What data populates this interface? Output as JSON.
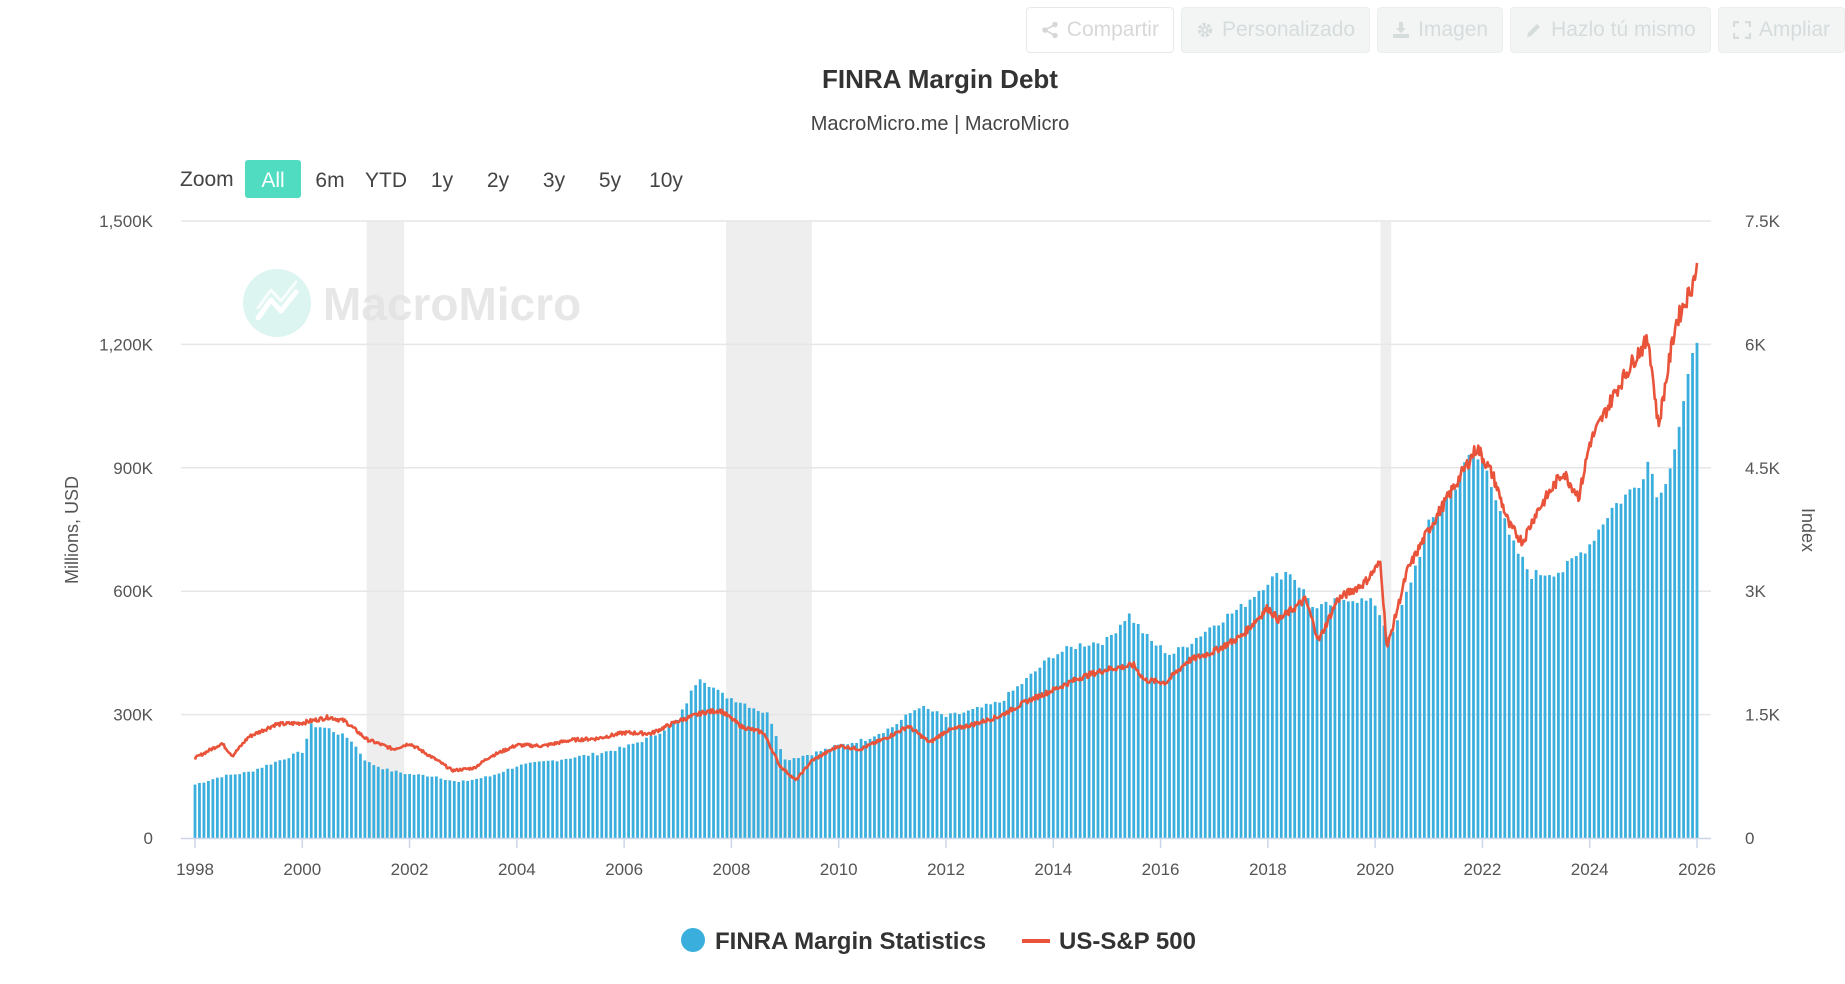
{
  "toolbar": {
    "share_label": "Compartir",
    "custom_label": "Personalizado",
    "image_label": "Imagen",
    "diy_label": "Hazlo tú mismo",
    "expand_label": "Ampliar"
  },
  "zoom": {
    "label": "Zoom",
    "options": [
      "All",
      "6m",
      "YTD",
      "1y",
      "2y",
      "3y",
      "5y",
      "10y"
    ],
    "selected": "All"
  },
  "watermark": "MacroMicro",
  "colors": {
    "bars": "#3aaedc",
    "line": "#e8533a",
    "recession": "#eeeeee",
    "zoom_active": "#4fdcc0",
    "grid": "#e6e6e6"
  },
  "chart_data": {
    "type": "bar+line",
    "title": "FINRA Margin Debt",
    "subtitle": "MacroMicro.me | MacroMicro",
    "ylabel_left": "Millions, USD",
    "ylabel_right": "Index",
    "ylim_left": [
      0,
      1500000
    ],
    "ylim_right": [
      0,
      7500
    ],
    "yticks_left": [
      "0",
      "300K",
      "600K",
      "900K",
      "1,200K",
      "1,500K"
    ],
    "yticks_right": [
      "0",
      "1.5K",
      "3K",
      "4.5K",
      "6K",
      "7.5K"
    ],
    "xlim": [
      1998.0,
      2026.0
    ],
    "xticks": [
      "1998",
      "2000",
      "2002",
      "2004",
      "2006",
      "2008",
      "2010",
      "2012",
      "2014",
      "2016",
      "2018",
      "2020",
      "2022",
      "2024",
      "2026"
    ],
    "recessions": [
      [
        2001.2,
        2001.9
      ],
      [
        2007.9,
        2009.5
      ],
      [
        2020.1,
        2020.3
      ]
    ],
    "legend": [
      "FINRA Margin Statistics",
      "US-S&P 500"
    ],
    "series": [
      {
        "name": "FINRA Margin Statistics",
        "type": "bar",
        "unit": "Millions, USD",
        "points": [
          [
            1998.0,
            130000
          ],
          [
            1998.5,
            150000
          ],
          [
            1999.0,
            160000
          ],
          [
            1999.5,
            185000
          ],
          [
            2000.0,
            210000
          ],
          [
            2000.17,
            275000
          ],
          [
            2000.5,
            265000
          ],
          [
            2000.9,
            240000
          ],
          [
            2001.2,
            185000
          ],
          [
            2001.6,
            165000
          ],
          [
            2002.0,
            155000
          ],
          [
            2002.5,
            150000
          ],
          [
            2002.9,
            135000
          ],
          [
            2003.5,
            150000
          ],
          [
            2004.0,
            175000
          ],
          [
            2004.5,
            185000
          ],
          [
            2005.0,
            195000
          ],
          [
            2005.5,
            205000
          ],
          [
            2006.0,
            220000
          ],
          [
            2006.5,
            245000
          ],
          [
            2007.0,
            285000
          ],
          [
            2007.4,
            395000
          ],
          [
            2007.8,
            350000
          ],
          [
            2008.2,
            330000
          ],
          [
            2008.7,
            300000
          ],
          [
            2009.0,
            190000
          ],
          [
            2009.5,
            205000
          ],
          [
            2010.0,
            225000
          ],
          [
            2010.5,
            240000
          ],
          [
            2011.0,
            270000
          ],
          [
            2011.5,
            320000
          ],
          [
            2012.0,
            295000
          ],
          [
            2012.5,
            310000
          ],
          [
            2013.0,
            330000
          ],
          [
            2013.5,
            385000
          ],
          [
            2014.0,
            445000
          ],
          [
            2014.5,
            470000
          ],
          [
            2015.0,
            480000
          ],
          [
            2015.4,
            545000
          ],
          [
            2015.8,
            480000
          ],
          [
            2016.2,
            445000
          ],
          [
            2016.6,
            480000
          ],
          [
            2017.0,
            520000
          ],
          [
            2017.5,
            560000
          ],
          [
            2018.0,
            625000
          ],
          [
            2018.4,
            650000
          ],
          [
            2018.9,
            555000
          ],
          [
            2019.5,
            585000
          ],
          [
            2020.0,
            570000
          ],
          [
            2020.3,
            480000
          ],
          [
            2020.7,
            640000
          ],
          [
            2021.0,
            760000
          ],
          [
            2021.5,
            860000
          ],
          [
            2021.8,
            935000
          ],
          [
            2022.1,
            895000
          ],
          [
            2022.5,
            730000
          ],
          [
            2022.9,
            640000
          ],
          [
            2023.5,
            650000
          ],
          [
            2024.0,
            715000
          ],
          [
            2024.4,
            800000
          ],
          [
            2024.9,
            860000
          ],
          [
            2025.1,
            920000
          ],
          [
            2025.3,
            820000
          ],
          [
            2025.6,
            960000
          ],
          [
            2025.9,
            1150000
          ],
          [
            2026.0,
            1220000
          ]
        ]
      },
      {
        "name": "US-S&P 500",
        "type": "line",
        "unit": "Index",
        "points": [
          [
            1998.0,
            970
          ],
          [
            1998.5,
            1150
          ],
          [
            1998.7,
            1000
          ],
          [
            1999.0,
            1230
          ],
          [
            1999.5,
            1380
          ],
          [
            2000.0,
            1400
          ],
          [
            2000.5,
            1470
          ],
          [
            2000.8,
            1420
          ],
          [
            2001.2,
            1200
          ],
          [
            2001.7,
            1080
          ],
          [
            2002.0,
            1150
          ],
          [
            2002.5,
            950
          ],
          [
            2002.8,
            820
          ],
          [
            2003.2,
            850
          ],
          [
            2003.5,
            990
          ],
          [
            2004.0,
            1130
          ],
          [
            2004.5,
            1120
          ],
          [
            2005.0,
            1190
          ],
          [
            2005.5,
            1210
          ],
          [
            2006.0,
            1280
          ],
          [
            2006.5,
            1270
          ],
          [
            2007.0,
            1420
          ],
          [
            2007.5,
            1530
          ],
          [
            2007.8,
            1550
          ],
          [
            2008.2,
            1350
          ],
          [
            2008.6,
            1280
          ],
          [
            2008.9,
            880
          ],
          [
            2009.2,
            700
          ],
          [
            2009.5,
            940
          ],
          [
            2010.0,
            1120
          ],
          [
            2010.4,
            1080
          ],
          [
            2010.9,
            1220
          ],
          [
            2011.3,
            1360
          ],
          [
            2011.7,
            1160
          ],
          [
            2012.0,
            1300
          ],
          [
            2012.5,
            1380
          ],
          [
            2013.0,
            1480
          ],
          [
            2013.5,
            1660
          ],
          [
            2014.0,
            1800
          ],
          [
            2014.5,
            1950
          ],
          [
            2015.0,
            2050
          ],
          [
            2015.5,
            2100
          ],
          [
            2015.7,
            1920
          ],
          [
            2016.1,
            1890
          ],
          [
            2016.5,
            2150
          ],
          [
            2017.0,
            2270
          ],
          [
            2017.5,
            2450
          ],
          [
            2018.0,
            2800
          ],
          [
            2018.2,
            2650
          ],
          [
            2018.7,
            2900
          ],
          [
            2018.95,
            2400
          ],
          [
            2019.3,
            2900
          ],
          [
            2019.8,
            3100
          ],
          [
            2020.1,
            3350
          ],
          [
            2020.22,
            2300
          ],
          [
            2020.6,
            3250
          ],
          [
            2021.0,
            3750
          ],
          [
            2021.5,
            4300
          ],
          [
            2021.9,
            4750
          ],
          [
            2022.2,
            4400
          ],
          [
            2022.5,
            3800
          ],
          [
            2022.75,
            3600
          ],
          [
            2023.0,
            3950
          ],
          [
            2023.5,
            4450
          ],
          [
            2023.8,
            4150
          ],
          [
            2024.0,
            4800
          ],
          [
            2024.5,
            5450
          ],
          [
            2024.9,
            5900
          ],
          [
            2025.1,
            6050
          ],
          [
            2025.28,
            5000
          ],
          [
            2025.6,
            6250
          ],
          [
            2025.9,
            6700
          ],
          [
            2026.0,
            6950
          ]
        ]
      }
    ]
  }
}
